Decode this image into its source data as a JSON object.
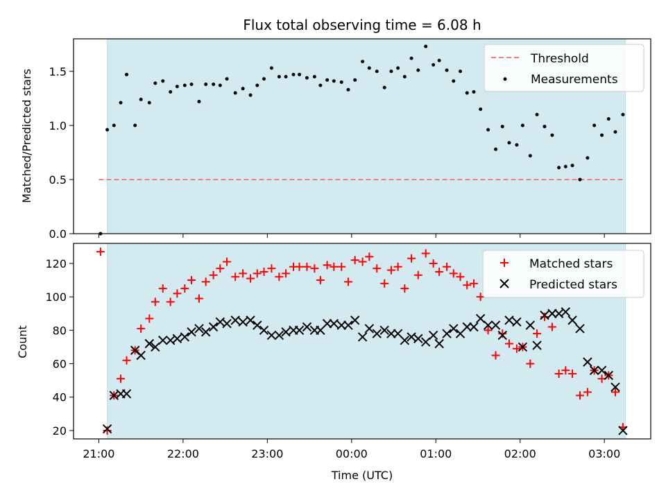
{
  "title": "Flux total observing time = 6.08 h",
  "xlabel": "Time (UTC)",
  "xticks": [
    "21:00",
    "22:00",
    "23:00",
    "00:00",
    "01:00",
    "02:00",
    "03:00"
  ],
  "colors": {
    "span": "#d3ebf0",
    "threshold": "#f08080",
    "matched": "#ff0000",
    "predicted": "#000000",
    "measurements": "#000000"
  },
  "chart_data": [
    {
      "type": "scatter",
      "ylabel": "Matched/Predicted stars",
      "ylim": [
        0,
        1.8
      ],
      "yticks": [
        0.0,
        0.5,
        1.0,
        1.5
      ],
      "xlim": [
        20.7,
        27.55
      ],
      "shaded_span": [
        21.1,
        27.25
      ],
      "threshold": 0.5,
      "threshold_x": [
        21.0,
        27.25
      ],
      "legend": {
        "placement": "top-right",
        "threshold_label": "Threshold",
        "measurements_label": "Measurements"
      },
      "series": [
        {
          "name": "Measurements",
          "x": [
            21.02,
            21.1,
            21.18,
            21.26,
            21.33,
            21.43,
            21.5,
            21.6,
            21.67,
            21.76,
            21.85,
            21.93,
            22.02,
            22.1,
            22.19,
            22.27,
            22.36,
            22.44,
            22.52,
            22.62,
            22.71,
            22.8,
            22.88,
            22.96,
            23.05,
            23.14,
            23.22,
            23.31,
            23.38,
            23.47,
            23.56,
            23.63,
            23.71,
            23.79,
            23.88,
            23.96,
            24.04,
            24.13,
            24.21,
            24.3,
            24.39,
            24.47,
            24.55,
            24.63,
            24.71,
            24.79,
            24.88,
            24.97,
            25.04,
            25.13,
            25.21,
            25.29,
            25.37,
            25.45,
            25.53,
            25.62,
            25.71,
            25.79,
            25.87,
            25.96,
            26.03,
            26.12,
            26.2,
            26.29,
            26.38,
            26.46,
            26.54,
            26.62,
            26.71,
            26.8,
            26.88,
            26.97,
            27.05,
            27.13,
            27.22
          ],
          "y": [
            0.0,
            0.96,
            1.0,
            1.21,
            1.47,
            1.0,
            1.24,
            1.21,
            1.39,
            1.41,
            1.31,
            1.36,
            1.37,
            1.38,
            1.22,
            1.38,
            1.38,
            1.37,
            1.43,
            1.3,
            1.34,
            1.28,
            1.37,
            1.43,
            1.53,
            1.45,
            1.45,
            1.47,
            1.47,
            1.44,
            1.45,
            1.37,
            1.42,
            1.41,
            1.4,
            1.33,
            1.42,
            1.59,
            1.53,
            1.5,
            1.35,
            1.5,
            1.53,
            1.45,
            1.62,
            1.51,
            1.73,
            1.56,
            1.6,
            1.51,
            1.41,
            1.5,
            1.3,
            1.31,
            1.15,
            0.96,
            0.78,
            0.99,
            0.84,
            0.82,
            1.0,
            0.72,
            1.1,
            0.99,
            0.91,
            0.61,
            0.62,
            0.63,
            0.5,
            0.7,
            1.0,
            0.91,
            1.06,
            0.94,
            1.1
          ]
        }
      ]
    },
    {
      "type": "scatter",
      "ylabel": "Count",
      "ylim": [
        15,
        132
      ],
      "yticks": [
        20,
        40,
        60,
        80,
        100,
        120
      ],
      "xlim": [
        20.7,
        27.55
      ],
      "shaded_span": [
        21.1,
        27.25
      ],
      "legend": {
        "placement": "top-right"
      },
      "series": [
        {
          "name": "Matched stars",
          "marker": "+",
          "x": [
            21.02,
            21.1,
            21.18,
            21.26,
            21.33,
            21.43,
            21.5,
            21.6,
            21.67,
            21.76,
            21.85,
            21.93,
            22.02,
            22.1,
            22.19,
            22.27,
            22.36,
            22.44,
            22.52,
            22.62,
            22.71,
            22.8,
            22.88,
            22.96,
            23.05,
            23.14,
            23.22,
            23.31,
            23.38,
            23.47,
            23.56,
            23.63,
            23.71,
            23.79,
            23.88,
            23.96,
            24.04,
            24.13,
            24.21,
            24.3,
            24.39,
            24.47,
            24.55,
            24.63,
            24.71,
            24.79,
            24.88,
            24.97,
            25.04,
            25.13,
            25.21,
            25.29,
            25.37,
            25.45,
            25.53,
            25.62,
            25.71,
            25.79,
            25.87,
            25.96,
            26.03,
            26.12,
            26.2,
            26.29,
            26.38,
            26.46,
            26.54,
            26.62,
            26.71,
            26.8,
            26.88,
            26.97,
            27.05,
            27.13,
            27.22
          ],
          "y": [
            127,
            20,
            41,
            51,
            62,
            68,
            81,
            87,
            97,
            105,
            97,
            102,
            105,
            110,
            99,
            109,
            113,
            117,
            121,
            112,
            114,
            111,
            114,
            115,
            117,
            112,
            114,
            118,
            118,
            118,
            117,
            110,
            119,
            118,
            118,
            109,
            122,
            121,
            124,
            117,
            108,
            116,
            118,
            105,
            123,
            113,
            126,
            120,
            115,
            118,
            114,
            112,
            107,
            108,
            100,
            80,
            65,
            78,
            72,
            69,
            70,
            60,
            78,
            88,
            82,
            54,
            56,
            54,
            41,
            43,
            56,
            51,
            53,
            43,
            22
          ]
        },
        {
          "name": "Predicted stars",
          "marker": "x",
          "x": [
            21.02,
            21.1,
            21.18,
            21.26,
            21.33,
            21.43,
            21.5,
            21.6,
            21.67,
            21.76,
            21.85,
            21.93,
            22.02,
            22.1,
            22.19,
            22.27,
            22.36,
            22.44,
            22.52,
            22.62,
            22.71,
            22.8,
            22.88,
            22.96,
            23.05,
            23.14,
            23.22,
            23.31,
            23.38,
            23.47,
            23.56,
            23.63,
            23.71,
            23.79,
            23.88,
            23.96,
            24.04,
            24.13,
            24.21,
            24.3,
            24.39,
            24.47,
            24.55,
            24.63,
            24.71,
            24.79,
            24.88,
            24.97,
            25.04,
            25.13,
            25.21,
            25.29,
            25.37,
            25.45,
            25.53,
            25.62,
            25.71,
            25.79,
            25.87,
            25.96,
            26.03,
            26.12,
            26.2,
            26.29,
            26.38,
            26.46,
            26.54,
            26.62,
            26.71,
            26.8,
            26.88,
            26.97,
            27.05,
            27.13,
            27.22
          ],
          "y": [
            null,
            21,
            41,
            42,
            42,
            68,
            65,
            72,
            70,
            74,
            74,
            75,
            76,
            79,
            81,
            79,
            82,
            85,
            84,
            86,
            85,
            86,
            83,
            80,
            77,
            77,
            79,
            80,
            80,
            82,
            80,
            80,
            84,
            84,
            83,
            83,
            86,
            76,
            81,
            78,
            80,
            78,
            78,
            74,
            76,
            75,
            73,
            77,
            72,
            78,
            81,
            78,
            82,
            82,
            87,
            83,
            83,
            77,
            86,
            85,
            70,
            83,
            71,
            89,
            90,
            90,
            91,
            86,
            81,
            61,
            56,
            56,
            53,
            46,
            20
          ]
        }
      ]
    }
  ]
}
